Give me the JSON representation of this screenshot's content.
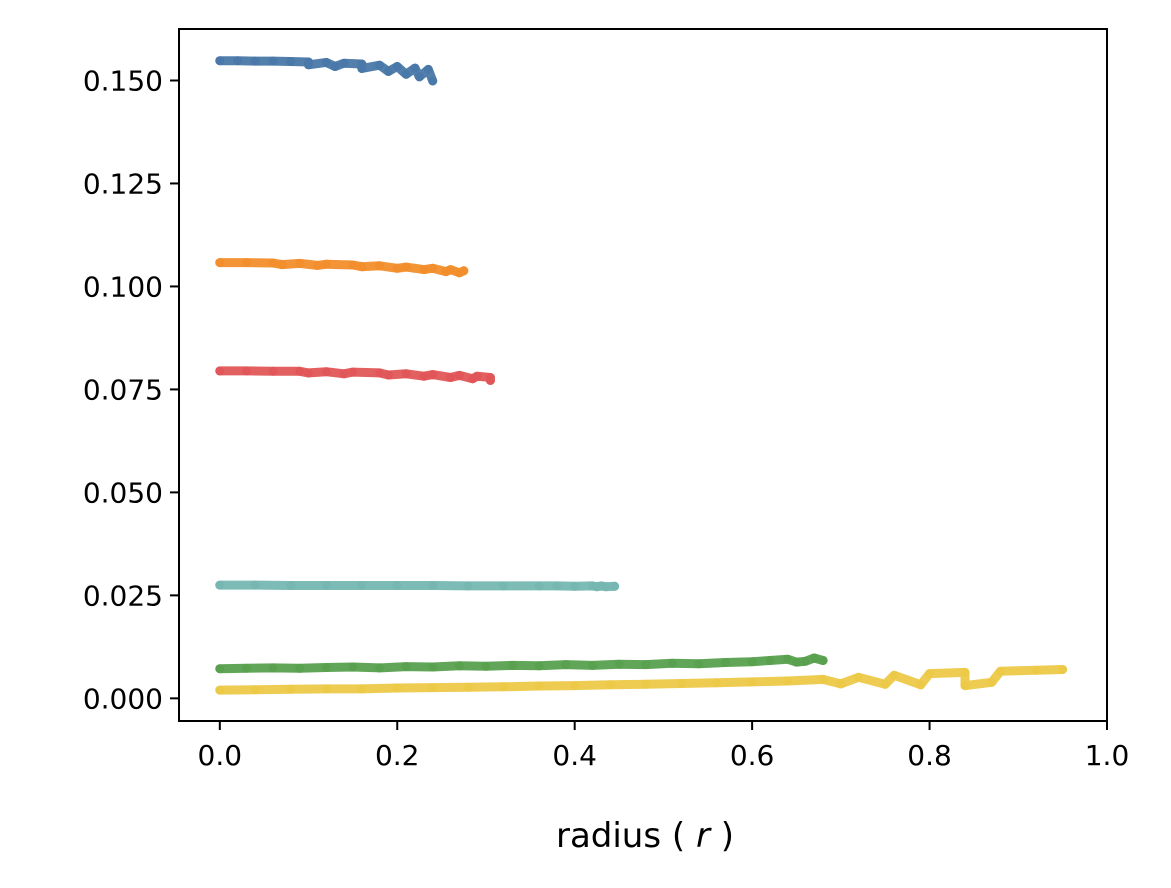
{
  "chart_data": {
    "type": "scatter",
    "title": "",
    "xlabel_prefix": "radius ( ",
    "xlabel_var": "r",
    "xlabel_suffix": " )",
    "ylabel": "",
    "xlim": [
      -0.046,
      1.0
    ],
    "ylim": [
      -0.0055,
      0.1625
    ],
    "xticks": [
      "0.0",
      "0.2",
      "0.4",
      "0.6",
      "0.8",
      "1.0"
    ],
    "yticks": [
      "0.000",
      "0.025",
      "0.050",
      "0.075",
      "0.100",
      "0.125",
      "0.150"
    ],
    "grid": false,
    "legend": "none",
    "series": [
      {
        "color": "#4a78a8",
        "points": [
          [
            0.0,
            0.1548
          ],
          [
            0.02,
            0.1548
          ],
          [
            0.04,
            0.1547
          ],
          [
            0.06,
            0.1547
          ],
          [
            0.08,
            0.1546
          ],
          [
            0.1,
            0.1545
          ],
          [
            0.12,
            0.1544
          ],
          [
            0.14,
            0.1542
          ],
          [
            0.16,
            0.154
          ],
          [
            0.18,
            0.1537
          ],
          [
            0.2,
            0.1534
          ],
          [
            0.22,
            0.153
          ],
          [
            0.235,
            0.1527
          ],
          [
            0.1,
            0.1538
          ],
          [
            0.13,
            0.1534
          ],
          [
            0.16,
            0.1529
          ],
          [
            0.19,
            0.1522
          ],
          [
            0.21,
            0.1515
          ],
          [
            0.225,
            0.1509
          ],
          [
            0.24,
            0.1499
          ]
        ]
      },
      {
        "color": "#f28e2c",
        "points": [
          [
            0.0,
            0.1058
          ],
          [
            0.03,
            0.1058
          ],
          [
            0.06,
            0.1057
          ],
          [
            0.09,
            0.1056
          ],
          [
            0.12,
            0.1054
          ],
          [
            0.15,
            0.1052
          ],
          [
            0.18,
            0.105
          ],
          [
            0.21,
            0.1047
          ],
          [
            0.24,
            0.1044
          ],
          [
            0.26,
            0.1041
          ],
          [
            0.275,
            0.1038
          ],
          [
            0.07,
            0.1053
          ],
          [
            0.11,
            0.1051
          ],
          [
            0.16,
            0.1048
          ],
          [
            0.2,
            0.1044
          ],
          [
            0.23,
            0.1041
          ],
          [
            0.255,
            0.1036
          ],
          [
            0.27,
            0.1033
          ]
        ]
      },
      {
        "color": "#e15759",
        "points": [
          [
            0.0,
            0.0795
          ],
          [
            0.03,
            0.0795
          ],
          [
            0.06,
            0.0794
          ],
          [
            0.09,
            0.0794
          ],
          [
            0.12,
            0.0793
          ],
          [
            0.15,
            0.0792
          ],
          [
            0.18,
            0.079
          ],
          [
            0.21,
            0.0788
          ],
          [
            0.24,
            0.0786
          ],
          [
            0.27,
            0.0784
          ],
          [
            0.29,
            0.0782
          ],
          [
            0.305,
            0.0779
          ],
          [
            0.1,
            0.079
          ],
          [
            0.14,
            0.0788
          ],
          [
            0.19,
            0.0785
          ],
          [
            0.23,
            0.0782
          ],
          [
            0.26,
            0.0779
          ],
          [
            0.285,
            0.0776
          ],
          [
            0.305,
            0.0772
          ]
        ]
      },
      {
        "color": "#76b7b2",
        "points": [
          [
            0.0,
            0.0275
          ],
          [
            0.04,
            0.0275
          ],
          [
            0.08,
            0.0274
          ],
          [
            0.12,
            0.0274
          ],
          [
            0.16,
            0.0274
          ],
          [
            0.2,
            0.0274
          ],
          [
            0.24,
            0.0274
          ],
          [
            0.28,
            0.0273
          ],
          [
            0.32,
            0.0273
          ],
          [
            0.36,
            0.0273
          ],
          [
            0.38,
            0.0273
          ],
          [
            0.4,
            0.0272
          ],
          [
            0.42,
            0.0273
          ],
          [
            0.425,
            0.0271
          ],
          [
            0.43,
            0.0273
          ],
          [
            0.435,
            0.0271
          ],
          [
            0.445,
            0.0272
          ]
        ]
      },
      {
        "color": "#59a14f",
        "points": [
          [
            0.0,
            0.0072
          ],
          [
            0.03,
            0.0073
          ],
          [
            0.06,
            0.0074
          ],
          [
            0.09,
            0.0073
          ],
          [
            0.12,
            0.0075
          ],
          [
            0.15,
            0.0076
          ],
          [
            0.18,
            0.0074
          ],
          [
            0.21,
            0.0077
          ],
          [
            0.24,
            0.0076
          ],
          [
            0.27,
            0.0079
          ],
          [
            0.3,
            0.0078
          ],
          [
            0.33,
            0.008
          ],
          [
            0.36,
            0.0079
          ],
          [
            0.39,
            0.0082
          ],
          [
            0.42,
            0.008
          ],
          [
            0.45,
            0.0083
          ],
          [
            0.48,
            0.0082
          ],
          [
            0.51,
            0.0085
          ],
          [
            0.54,
            0.0084
          ],
          [
            0.57,
            0.0087
          ],
          [
            0.6,
            0.0089
          ],
          [
            0.62,
            0.0092
          ],
          [
            0.64,
            0.0095
          ],
          [
            0.65,
            0.0088
          ],
          [
            0.66,
            0.009
          ],
          [
            0.67,
            0.0098
          ],
          [
            0.68,
            0.0092
          ]
        ]
      },
      {
        "color": "#edc948",
        "points": [
          [
            0.0,
            0.002
          ],
          [
            0.04,
            0.0021
          ],
          [
            0.08,
            0.0022
          ],
          [
            0.12,
            0.0023
          ],
          [
            0.16,
            0.0023
          ],
          [
            0.2,
            0.0025
          ],
          [
            0.24,
            0.0026
          ],
          [
            0.28,
            0.0027
          ],
          [
            0.32,
            0.0028
          ],
          [
            0.36,
            0.003
          ],
          [
            0.4,
            0.0031
          ],
          [
            0.44,
            0.0033
          ],
          [
            0.48,
            0.0034
          ],
          [
            0.52,
            0.0036
          ],
          [
            0.56,
            0.0038
          ],
          [
            0.6,
            0.004
          ],
          [
            0.64,
            0.0042
          ],
          [
            0.68,
            0.0046
          ],
          [
            0.72,
            0.0051
          ],
          [
            0.76,
            0.0056
          ],
          [
            0.8,
            0.006
          ],
          [
            0.84,
            0.0063
          ],
          [
            0.88,
            0.0066
          ],
          [
            0.92,
            0.0068
          ],
          [
            0.95,
            0.007
          ],
          [
            0.7,
            0.0035
          ],
          [
            0.75,
            0.0034
          ],
          [
            0.79,
            0.0033
          ],
          [
            0.84,
            0.0031
          ],
          [
            0.87,
            0.0039
          ]
        ]
      }
    ]
  }
}
